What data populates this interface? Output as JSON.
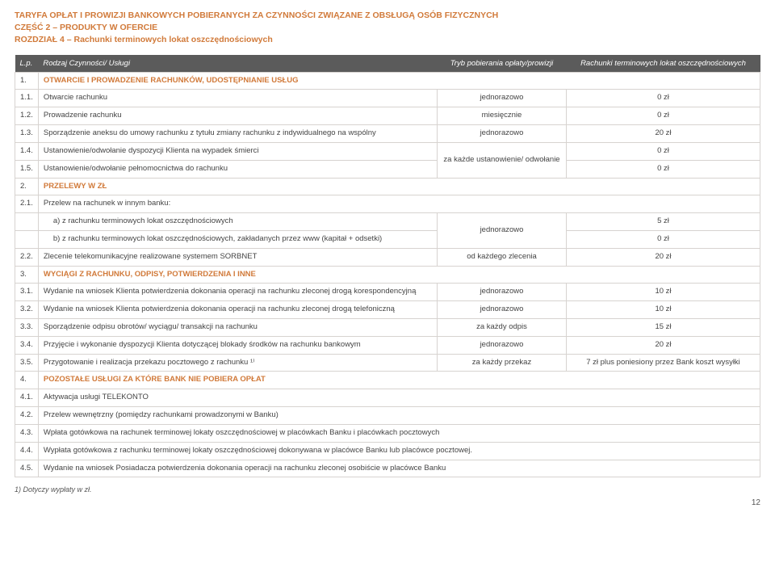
{
  "doc": {
    "title1": "TARYFA OPŁAT I PROWIZJI BANKOWYCH POBIERANYCH ZA CZYNNOŚCI ZWIĄZANE Z OBSŁUGĄ OSÓB FIZYCZNYCH",
    "title2": "CZĘŚĆ 2 – PRODUKTY W OFERCIE",
    "title3": "ROZDZIAŁ 4 – Rachunki terminowych lokat oszczędnościowych",
    "pagenum": "12",
    "footnote": "1) Dotyczy wypłaty w zł."
  },
  "header": {
    "lp": "L.p.",
    "rodzaj": "Rodzaj Czynności/ Usługi",
    "tryb": "Tryb pobierania opłaty/prowizji",
    "fee": "Rachunki terminowych lokat oszczędnościowych"
  },
  "r": {
    "s1": {
      "lp": "1.",
      "t": "OTWARCIE I PROWADZENIE RACHUNKÓW, UDOSTĘPNIANIE USŁUG"
    },
    "r11": {
      "lp": "1.1.",
      "t": "Otwarcie rachunku",
      "tryb": "jednorazowo",
      "fee": "0 zł"
    },
    "r12": {
      "lp": "1.2.",
      "t": "Prowadzenie rachunku",
      "tryb": "miesięcznie",
      "fee": "0 zł"
    },
    "r13": {
      "lp": "1.3.",
      "t": "Sporządzenie aneksu do umowy rachunku z tytułu zmiany rachunku z indywidualnego na wspólny",
      "tryb": "jednorazowo",
      "fee": "20 zł"
    },
    "r14": {
      "lp": "1.4.",
      "t": "Ustanowienie/odwołanie dyspozycji Klienta na wypadek śmierci",
      "tryb": "za każde ustanowienie/\nodwołanie",
      "fee": "0 zł"
    },
    "r15": {
      "lp": "1.5.",
      "t": "Ustanowienie/odwołanie pełnomocnictwa do rachunku",
      "fee": "0 zł"
    },
    "s2": {
      "lp": "2.",
      "t": "PRZELEWY W ZŁ"
    },
    "r21": {
      "lp": "2.1.",
      "t": "Przelew na rachunek w innym banku:"
    },
    "r21a": {
      "lp": "",
      "t": "a) z rachunku terminowych lokat oszczędnościowych",
      "tryb": "jednorazowo",
      "fee": "5 zł"
    },
    "r21b": {
      "lp": "",
      "t": "b) z rachunku terminowych lokat oszczędnościowych, zakładanych przez www (kapitał + odsetki)",
      "fee": "0 zł"
    },
    "r22": {
      "lp": "2.2.",
      "t": "Zlecenie telekomunikacyjne realizowane systemem SORBNET",
      "tryb": "od każdego zlecenia",
      "fee": "20 zł"
    },
    "s3": {
      "lp": "3.",
      "t": "WYCIĄGI Z RACHUNKU, ODPISY, POTWIERDZENIA I INNE"
    },
    "r31": {
      "lp": "3.1.",
      "t": "Wydanie na wniosek Klienta potwierdzenia dokonania operacji na  rachunku zleconej drogą korespondencyjną",
      "tryb": "jednorazowo",
      "fee": "10 zł"
    },
    "r32": {
      "lp": "3.2.",
      "t": "Wydanie na wniosek Klienta potwierdzenia dokonania operacji na  rachunku zleconej drogą telefoniczną",
      "tryb": "jednorazowo",
      "fee": "10 zł"
    },
    "r33": {
      "lp": "3.3.",
      "t": "Sporządzenie odpisu obrotów/ wyciągu/ transakcji na rachunku",
      "tryb": "za każdy odpis",
      "fee": "15 zł"
    },
    "r34": {
      "lp": "3.4.",
      "t": "Przyjęcie i wykonanie dyspozycji Klienta dotyczącej blokady środków na rachunku bankowym",
      "tryb": "jednorazowo",
      "fee": "20 zł"
    },
    "r35": {
      "lp": "3.5.",
      "t": "Przygotowanie i realizacja przekazu pocztowego z rachunku ¹⁾",
      "tryb": "za każdy przekaz",
      "fee": "7 zł plus poniesiony przez Bank koszt wysyłki"
    },
    "s4": {
      "lp": "4.",
      "t": "POZOSTAŁE USŁUGI ZA KTÓRE BANK NIE POBIERA OPŁAT"
    },
    "r41": {
      "lp": "4.1.",
      "t": "Aktywacja usługi TELEKONTO"
    },
    "r42": {
      "lp": "4.2.",
      "t": "Przelew wewnętrzny (pomiędzy rachunkami prowadzonymi w Banku)"
    },
    "r43": {
      "lp": "4.3.",
      "t": "Wpłata gotówkowa na rachunek terminowej lokaty oszczędnościowej w placówkach Banku i placówkach pocztowych"
    },
    "r44": {
      "lp": "4.4.",
      "t": "Wypłata gotówkowa z rachunku terminowej lokaty oszczędnościowej dokonywana w placówce Banku lub placówce pocztowej."
    },
    "r45": {
      "lp": "4.5.",
      "t": "Wydanie na wniosek Posiadacza potwierdzenia dokonania operacji na  rachunku zleconej osobiście w placówce Banku"
    }
  }
}
